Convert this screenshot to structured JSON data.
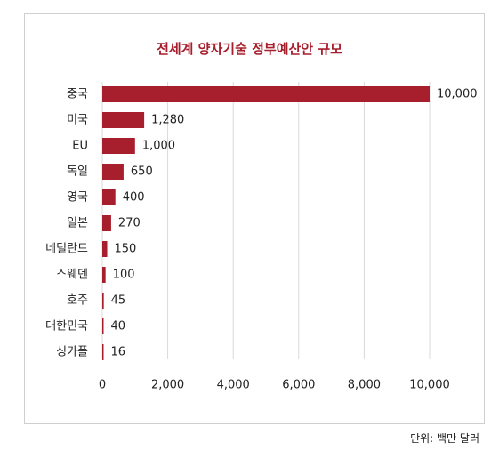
{
  "chart_data": {
    "type": "bar",
    "orientation": "horizontal",
    "title": "전세계 양자기술 정부예산안 규모",
    "unit_label": "단위: 백만 달러",
    "categories": [
      "중국",
      "미국",
      "EU",
      "독일",
      "영국",
      "일본",
      "네덜란드",
      "스웨덴",
      "호주",
      "대한민국",
      "싱가폴"
    ],
    "values": [
      10000,
      1280,
      1000,
      650,
      400,
      270,
      150,
      100,
      45,
      40,
      16
    ],
    "value_labels": [
      "10,000",
      "1,280",
      "1,000",
      "650",
      "400",
      "270",
      "150",
      "100",
      "45",
      "40",
      "16"
    ],
    "x_ticks": [
      0,
      2000,
      4000,
      6000,
      8000,
      10000
    ],
    "x_tick_labels": [
      "0",
      "2,000",
      "4,000",
      "6,000",
      "8,000",
      "10,000"
    ],
    "xlim": [
      0,
      10000
    ],
    "grid": true,
    "legend": "none",
    "colors": {
      "bar": "#a71e2d",
      "title": "#a71e2d",
      "grid": "#d9d9d9"
    }
  }
}
